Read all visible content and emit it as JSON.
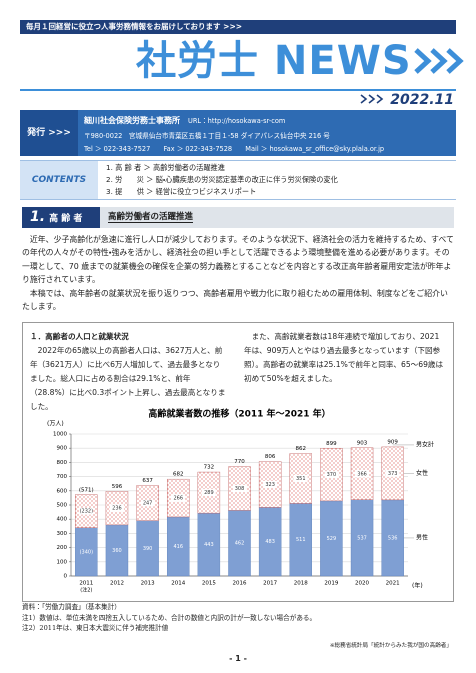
{
  "header": {
    "banner": "毎月１回経営に役立つ人事労務情報をお届けしております >>>",
    "title": "社労士 NEWS",
    "date": "2022.11"
  },
  "issuer": {
    "label": "発行 >>>",
    "name": "細川社会保険労務士事務所",
    "url": "URL：http://hosokawa-sr-com",
    "address": "〒980-0022　宮城県仙台市青葉区五橋１丁目１-58 ダイアパレス仙台中央 216 号",
    "contact": "Tel ＞ 022-343-7527　　Fax ＞ 022-343-7528　　Mail ＞ hosokawa_sr_office@sky.plala.or.jp"
  },
  "contents": {
    "label": "CONTENTS >>>",
    "items": [
      "1. 高 齢 者 ＞ 高齢労働者の活躍推進",
      "2. 労　　災 ＞ 脳・心臓疾患の労災認定基準の改正に伴う労災保険の変化",
      "3. 提　　供 ＞ 経営に役立つビジネスリポート"
    ]
  },
  "section": {
    "number": "1.",
    "category": "高 齢 者",
    "title": "高齢労働者の活躍推進"
  },
  "intro": [
    "近年、少子高齢化が急速に進行し人口が減少しております。そのような状況下、経済社会の活力を維持するため、すべての年代の人々がその特性・強みを活かし、経済社会の担い手として活躍できるよう環境整備を進める必要があります。その一環として、70 歳までの就業機会の確保を企業の努力義務とすることなどを内容とする改正高年齢者雇用安定法が昨年より施行されています。",
    "本稿では、高年齢者の就業状況を振り返りつつ、高齢者雇用や戦力化に取り組むための雇用体制、制度などをご紹介いたします。"
  ],
  "box": {
    "heading": "１．高齢者の人口と就業状況",
    "left": "2022年の65歳以上の高齢者人口は、3627万人と、前年（3621万人）に比べ6万人増加して、過去最多となりました。総人口に占める割合は29.1%と、前年（28.8%）に比べ0.3ポイント上昇し、過去最高となりました。",
    "right": "また、高齢就業者数は18年連続で増加しており、2021年は、909万人とやはり過去最多となっています（下図参照）。高齢者の就業率は25.1%で前年と同率、65～69歳は初めて50%を超えました。"
  },
  "chart_data": {
    "type": "stacked_bar",
    "title": "高齢就業者数の推移（2011 年～2021 年）",
    "y_label": "(万人)",
    "x_label": "(年)",
    "categories": [
      "2011",
      "2012",
      "2013",
      "2014",
      "2015",
      "2016",
      "2017",
      "2018",
      "2019",
      "2020",
      "2021"
    ],
    "category_sublabels": [
      "(注2)",
      null,
      null,
      null,
      null,
      null,
      null,
      null,
      null,
      null,
      null
    ],
    "series": [
      {
        "name": "男性",
        "color": "#7f9fd3",
        "values": [
          340,
          360,
          390,
          416,
          443,
          462,
          483,
          511,
          529,
          537,
          536
        ],
        "value_labels": [
          "(340)",
          null,
          null,
          null,
          null,
          null,
          null,
          null,
          null,
          null,
          null
        ]
      },
      {
        "name": "女性",
        "color": "#d9534f",
        "values": [
          232,
          236,
          247,
          266,
          289,
          308,
          323,
          351,
          370,
          366,
          373
        ],
        "value_labels": [
          "(232)",
          null,
          null,
          null,
          null,
          null,
          null,
          null,
          null,
          null,
          null
        ]
      }
    ],
    "totals": {
      "name": "男女計",
      "values": [
        571,
        596,
        637,
        682,
        732,
        770,
        806,
        862,
        899,
        903,
        909
      ],
      "value_labels": [
        "(571)",
        null,
        null,
        null,
        null,
        null,
        null,
        null,
        null,
        null,
        null
      ]
    },
    "ylim": [
      0,
      1000
    ],
    "yticks": [
      0,
      100,
      200,
      300,
      400,
      500,
      600,
      700,
      800,
      900,
      1000
    ],
    "grid": true
  },
  "notes": [
    "資料：「労働力調査」（基本集計）",
    "注1）数値は、単位未満を四捨五入しているため、合計の数値と内訳の計が一致しない場合がある。",
    "注2）2011年は、東日本大震災に伴う補完推計値"
  ],
  "footer": {
    "source": "※総務省統計局「統計からみた我が国の高齢者」",
    "page": "- 1 -"
  }
}
